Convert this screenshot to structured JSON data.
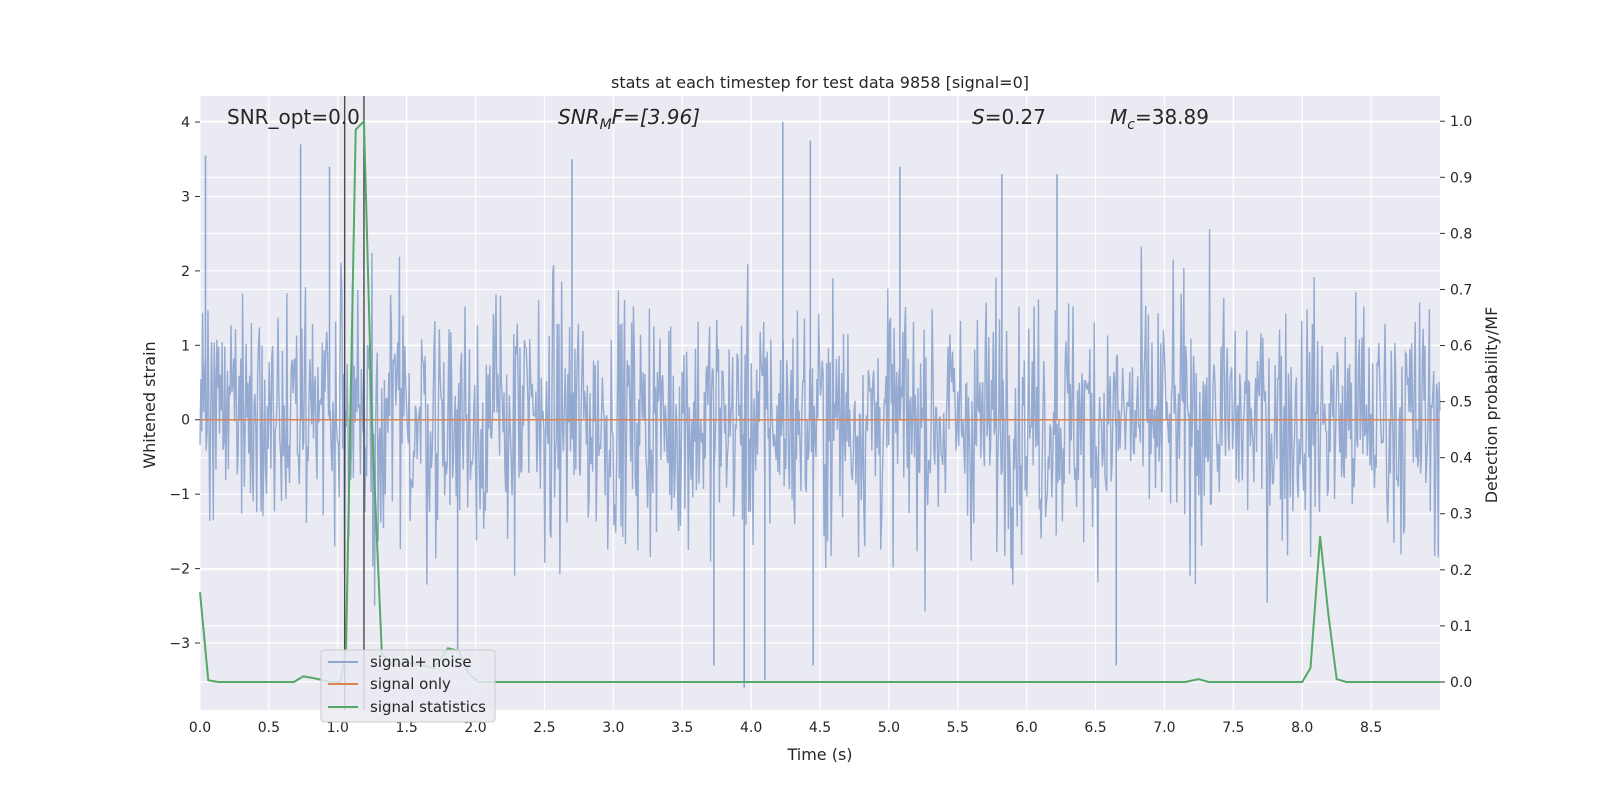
{
  "chart_data": {
    "type": "line",
    "title": "stats at each timestep for test data 9858 [signal=0]",
    "xlabel": "Time (s)",
    "ylabel_left": "Whitened strain",
    "ylabel_right": "Detection probability/MF",
    "xlim": [
      0,
      9.0
    ],
    "ylim_left": [
      -3.9,
      4.35
    ],
    "ylim_right": [
      -0.05,
      1.045
    ],
    "xticks": [
      "0.0",
      "0.5",
      "1.0",
      "1.5",
      "2.0",
      "2.5",
      "3.0",
      "3.5",
      "4.0",
      "4.5",
      "5.0",
      "5.5",
      "6.0",
      "6.5",
      "7.0",
      "7.5",
      "8.0",
      "8.5"
    ],
    "yticks_left": [
      "4",
      "3",
      "2",
      "1",
      "0",
      "−1",
      "−2",
      "−3"
    ],
    "yticks_right": [
      "1.0",
      "0.9",
      "0.8",
      "0.7",
      "0.6",
      "0.5",
      "0.4",
      "0.3",
      "0.2",
      "0.1",
      "0.0"
    ],
    "grid": true,
    "legend_position": "lower-left",
    "annotations": {
      "snr_opt": "SNR_opt=0.0",
      "snr_mf_base": "SNR",
      "snr_mf_sub": "M",
      "snr_mf_rest": "F=[3.96]",
      "s_label": "S",
      "s_value": "=0.27",
      "mc_label": "M",
      "mc_sub": "c",
      "mc_value": "=38.89"
    },
    "series": [
      {
        "name": "signal+ noise",
        "color": "#8fa6cf",
        "axis": "left",
        "description_values": "whitened noise time series, roughly within [-2.5, 2.5] with spikes up to 4.0 and down to -3.6",
        "spikes": [
          {
            "x": 0.04,
            "y": 3.55
          },
          {
            "x": 0.73,
            "y": 3.7
          },
          {
            "x": 0.94,
            "y": 3.4
          },
          {
            "x": 2.7,
            "y": 3.5
          },
          {
            "x": 4.23,
            "y": 4.0
          },
          {
            "x": 4.43,
            "y": 3.75
          },
          {
            "x": 5.08,
            "y": 3.4
          },
          {
            "x": 5.82,
            "y": 3.3
          },
          {
            "x": 6.22,
            "y": 3.3
          },
          {
            "x": 3.73,
            "y": -3.3
          },
          {
            "x": 3.95,
            "y": -3.6
          },
          {
            "x": 4.1,
            "y": -3.5
          },
          {
            "x": 4.45,
            "y": -3.3
          },
          {
            "x": 6.65,
            "y": -3.3
          },
          {
            "x": 1.87,
            "y": -3.1
          }
        ]
      },
      {
        "name": "signal only",
        "color": "#dd8452",
        "axis": "left",
        "x": [
          0,
          9.0
        ],
        "y": [
          0,
          0
        ]
      },
      {
        "name": "signal statistics",
        "color": "#55a868",
        "axis": "right",
        "x": [
          0.0,
          0.06,
          0.13,
          0.5,
          0.68,
          0.75,
          0.82,
          0.95,
          1.02,
          1.06,
          1.13,
          1.19,
          1.25,
          1.32,
          1.4,
          1.5,
          1.6,
          1.7,
          1.8,
          1.88,
          1.95,
          2.02,
          2.1,
          2.5,
          3.0,
          4.0,
          5.0,
          6.0,
          7.0,
          7.15,
          7.25,
          7.32,
          7.5,
          8.0,
          8.06,
          8.13,
          8.19,
          8.25,
          8.32,
          8.5,
          9.0
        ],
        "y": [
          0.16,
          0.003,
          0.0,
          0.0,
          0.0,
          0.01,
          0.007,
          0.0,
          0.0,
          0.06,
          0.985,
          1.0,
          0.45,
          0.05,
          0.03,
          0.035,
          0.03,
          0.025,
          0.06,
          0.055,
          0.015,
          0.0,
          0.0,
          0.0,
          0.0,
          0.0,
          0.0,
          0.0,
          0.0,
          0.0,
          0.005,
          0.0,
          0.0,
          0.0,
          0.025,
          0.26,
          0.12,
          0.005,
          0.0,
          0.0,
          0.0
        ]
      }
    ],
    "vertical_lines": [
      {
        "x": 1.05,
        "color": "#4a4a4a"
      },
      {
        "x": 1.19,
        "color": "#4a4a4a"
      }
    ]
  }
}
